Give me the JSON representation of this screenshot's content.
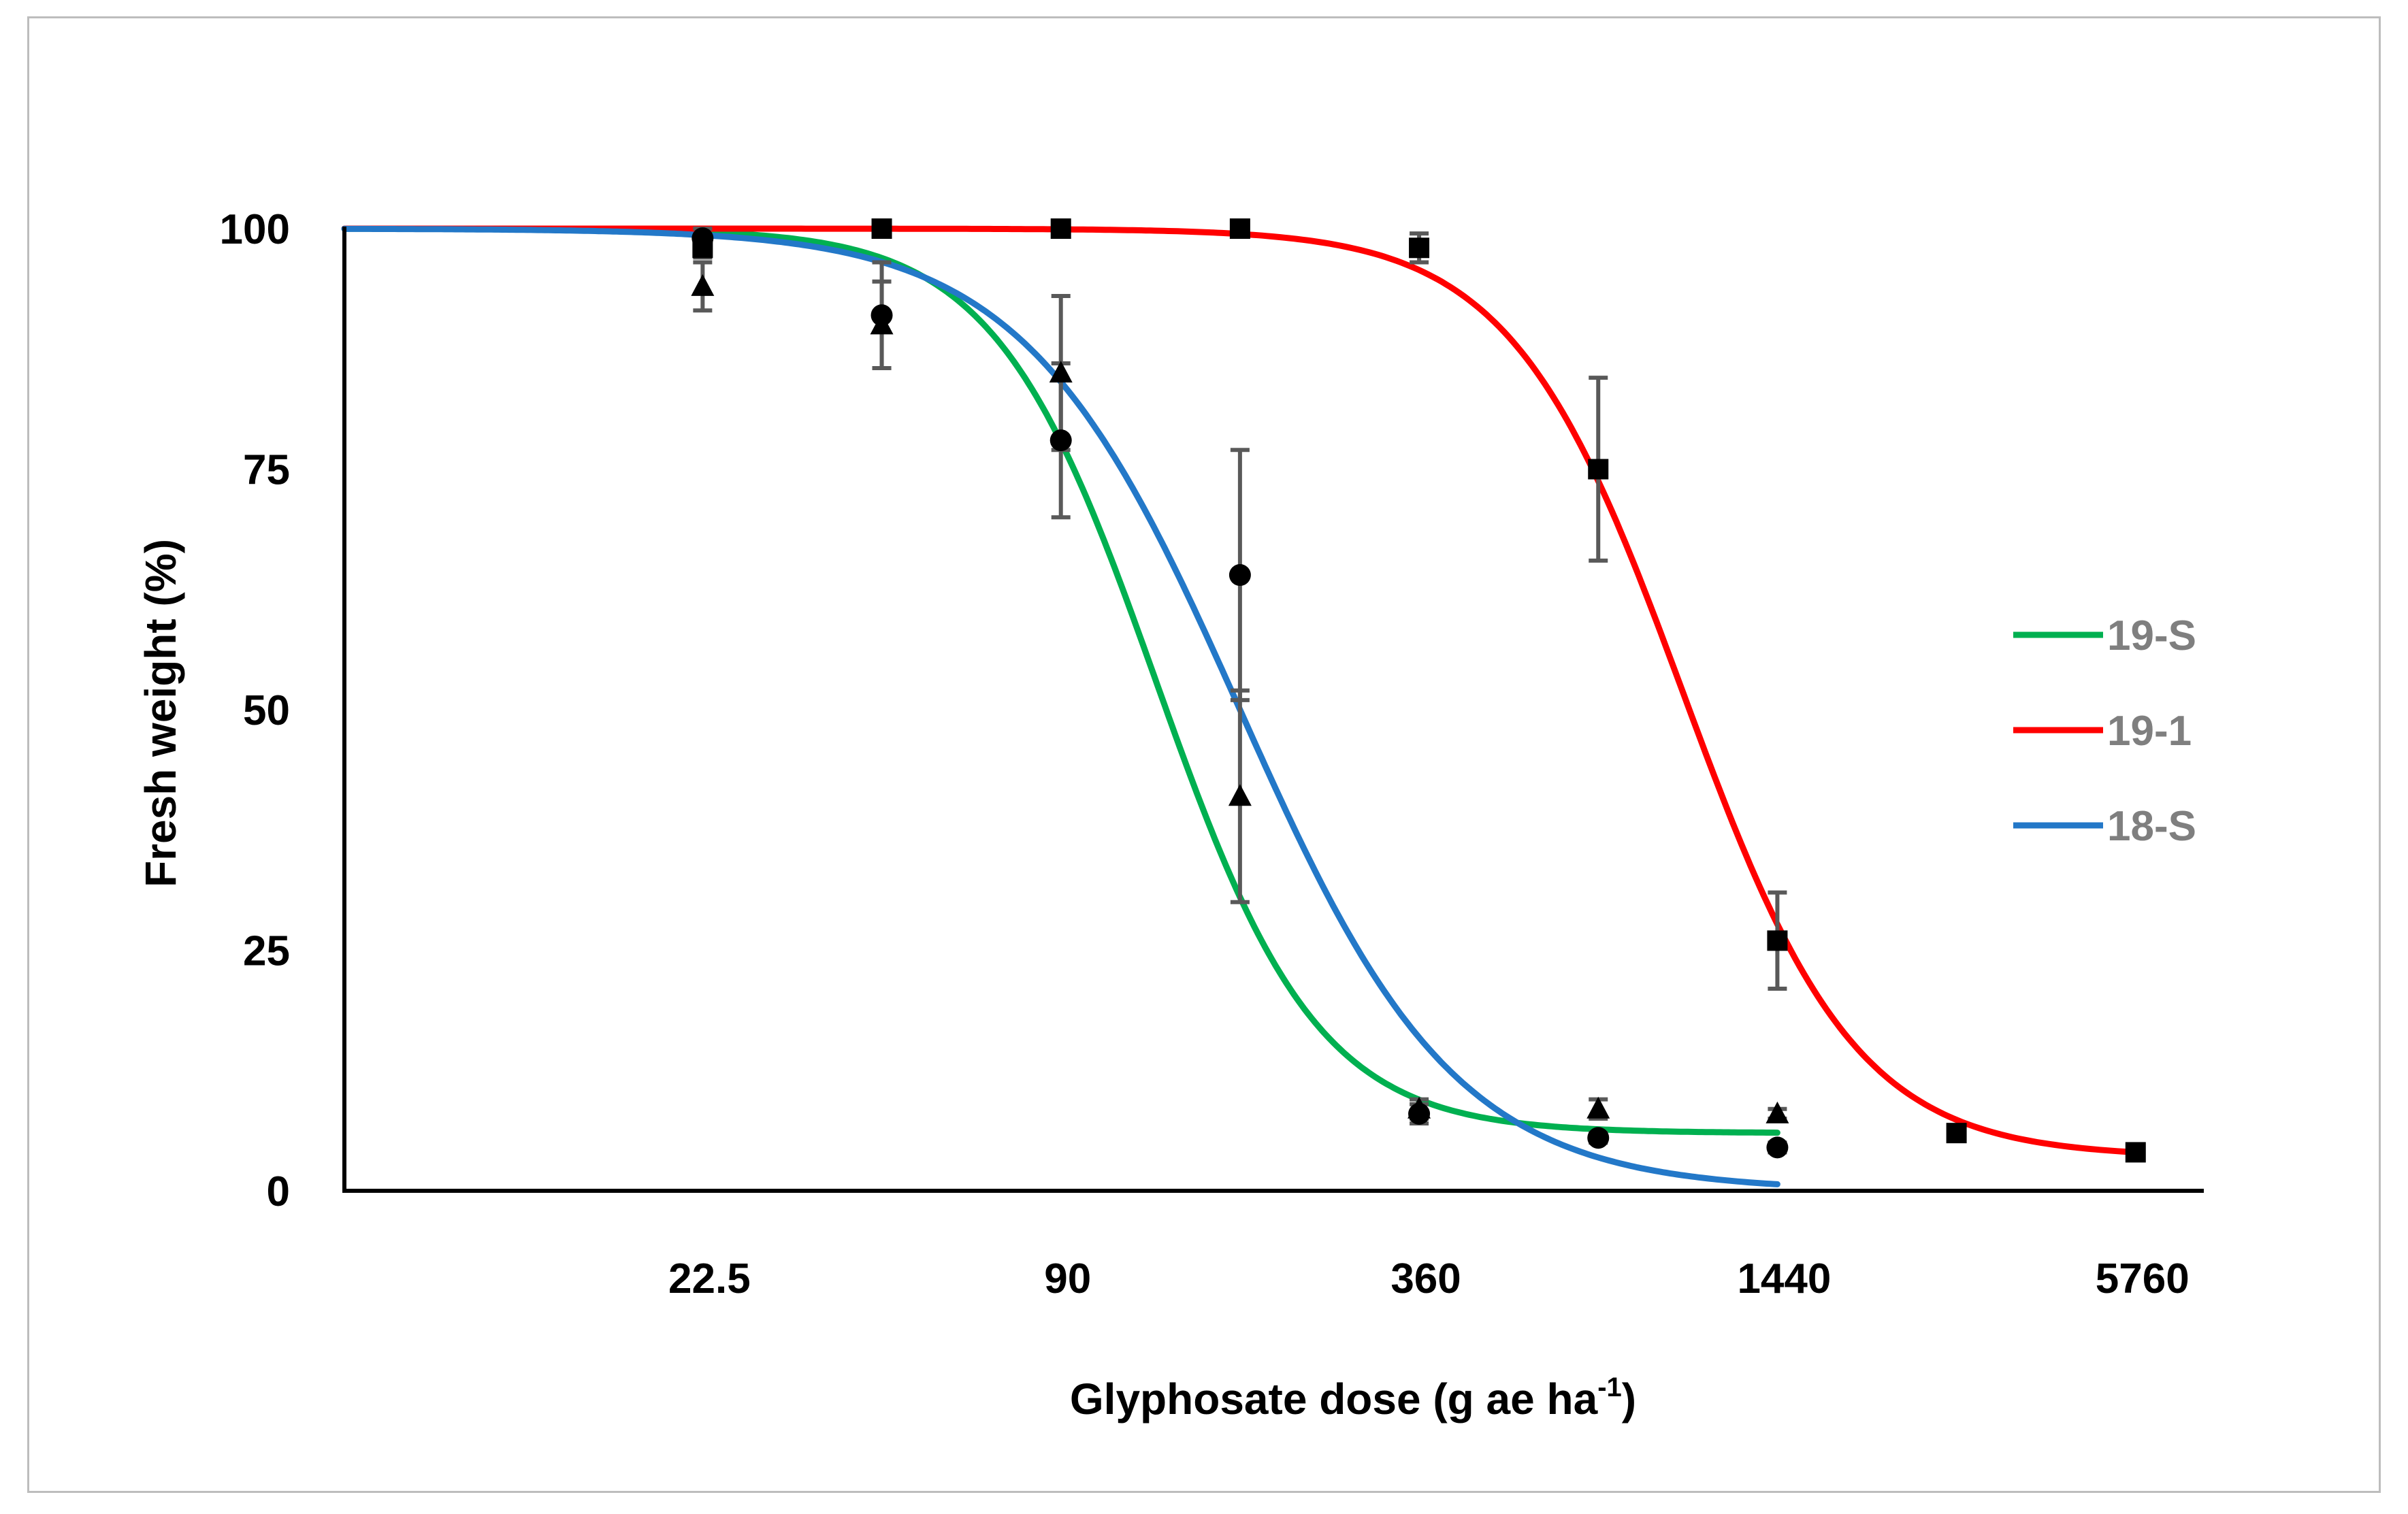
{
  "chart_data": {
    "type": "line",
    "title": "",
    "xlabel": "Glyphosate dose (g ae ha",
    "xlabel_superscript": "-1",
    "xlabel_suffix": ")",
    "ylabel": "Fresh weight (%)",
    "x_scale": "log2",
    "xlim": [
      5.625,
      7500
    ],
    "ylim": [
      0,
      100
    ],
    "x_ticks": [
      22.5,
      90,
      360,
      1440,
      5760
    ],
    "x_tick_labels": [
      "22.5",
      "90",
      "360",
      "1440",
      "5760"
    ],
    "y_ticks": [
      0,
      25,
      50,
      75,
      100
    ],
    "y_tick_labels": [
      "0",
      "25",
      "50",
      "75",
      "100"
    ],
    "grid": false,
    "legend_position": "right",
    "series": [
      {
        "name": "19-S",
        "color": "#00b050",
        "marker": "triangle",
        "model": {
          "c": 6,
          "d": 100,
          "ed50": 130,
          "b": 3.2
        },
        "points": [
          {
            "x": 22.5,
            "y": 94,
            "err": 2.5
          },
          {
            "x": 45,
            "y": 90,
            "err": 4.5
          },
          {
            "x": 90,
            "y": 85,
            "err": 8
          },
          {
            "x": 180,
            "y": 41,
            "err": 11
          },
          {
            "x": 360,
            "y": 8.5,
            "err": 1
          },
          {
            "x": 720,
            "y": 8.5,
            "err": 1
          },
          {
            "x": 1440,
            "y": 8,
            "err": 0.5
          }
        ]
      },
      {
        "name": "19-1",
        "color": "#ff0000",
        "marker": "square",
        "model": {
          "c": 3.5,
          "d": 100,
          "ed50": 1000,
          "b": 3.0
        },
        "points": [
          {
            "x": 22.5,
            "y": 98,
            "err": 1
          },
          {
            "x": 45,
            "y": 100,
            "err": 0
          },
          {
            "x": 90,
            "y": 100,
            "err": 0
          },
          {
            "x": 180,
            "y": 100,
            "err": 0
          },
          {
            "x": 360,
            "y": 98,
            "err": 1.5
          },
          {
            "x": 720,
            "y": 75,
            "err": 9.5
          },
          {
            "x": 1440,
            "y": 26,
            "err": 5
          },
          {
            "x": 2880,
            "y": 6,
            "err": 0.5
          },
          {
            "x": 5760,
            "y": 4,
            "err": 0.5
          }
        ]
      },
      {
        "name": "18-S",
        "color": "#2378c8",
        "marker": "circle",
        "model": {
          "c": 0,
          "d": 100,
          "ed50": 180,
          "b": 2.4
        },
        "points": [
          {
            "x": 22.5,
            "y": 99,
            "err": 1
          },
          {
            "x": 45,
            "y": 91,
            "err": 5.5
          },
          {
            "x": 90,
            "y": 78,
            "err": 8
          },
          {
            "x": 180,
            "y": 64,
            "err": 13
          },
          {
            "x": 360,
            "y": 8,
            "err": 1
          },
          {
            "x": 720,
            "y": 5.5,
            "err": 0.5
          },
          {
            "x": 1440,
            "y": 4.5,
            "err": 0.5
          }
        ]
      }
    ]
  }
}
